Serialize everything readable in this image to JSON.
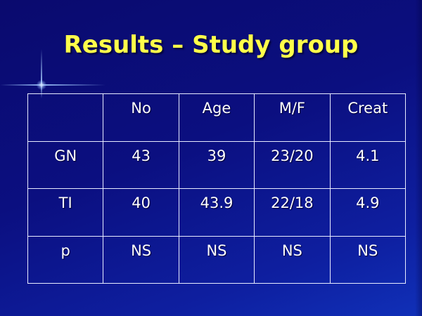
{
  "slide": {
    "title": "Results – Study group"
  },
  "table": {
    "headers": [
      "",
      "No",
      "Age",
      "M/F",
      "Creat"
    ],
    "rows": [
      [
        "GN",
        "43",
        "39",
        "23/20",
        "4.1"
      ],
      [
        "TI",
        "40",
        "43.9",
        "22/18",
        "4.9"
      ],
      [
        "p",
        "NS",
        "NS",
        "NS",
        "NS"
      ]
    ]
  },
  "colors": {
    "background": "#0b0f80",
    "title": "#ffff4a",
    "text": "#ffffff",
    "border": "#e8ecff"
  }
}
